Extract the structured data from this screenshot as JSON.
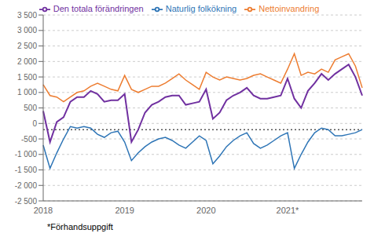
{
  "chart_data": {
    "type": "line",
    "categories": [
      "2018",
      null,
      null,
      null,
      null,
      null,
      null,
      null,
      null,
      null,
      null,
      null,
      "2019",
      null,
      null,
      null,
      null,
      null,
      null,
      null,
      null,
      null,
      null,
      null,
      "2020",
      null,
      null,
      null,
      null,
      null,
      null,
      null,
      null,
      null,
      null,
      null,
      "2021*",
      null,
      null,
      null,
      null,
      null,
      null,
      null,
      null,
      null,
      null,
      null
    ],
    "series": [
      {
        "name": "Naturlig folkökning",
        "color": "#2e75b6",
        "values": [
          -700,
          -1450,
          -950,
          -500,
          -100,
          -150,
          -100,
          -150,
          -350,
          -450,
          -300,
          -250,
          -600,
          -1200,
          -950,
          -750,
          -600,
          -500,
          -450,
          -550,
          -700,
          -800,
          -600,
          -400,
          -550,
          -1300,
          -1050,
          -750,
          -550,
          -400,
          -300,
          -650,
          -800,
          -700,
          -550,
          -400,
          -300,
          -1450,
          -1000,
          -600,
          -300,
          -150,
          -200,
          -400,
          -400,
          -350,
          -300,
          -200
        ]
      },
      {
        "name": "Nettoinvandring",
        "color": "#ed7d31",
        "values": [
          1250,
          900,
          850,
          700,
          850,
          1000,
          1050,
          1200,
          1300,
          1200,
          1100,
          1050,
          1550,
          1100,
          1000,
          1100,
          1200,
          1200,
          1300,
          1450,
          1600,
          1400,
          1250,
          1100,
          1650,
          1500,
          1400,
          1500,
          1450,
          1400,
          1450,
          1550,
          1600,
          1500,
          1400,
          1300,
          1750,
          2250,
          1550,
          1650,
          1600,
          1750,
          1650,
          2050,
          2150,
          2250,
          1850,
          1150
        ]
      },
      {
        "name": "Den totala förändringen",
        "color": "#7030a0",
        "values": [
          400,
          -600,
          50,
          200,
          700,
          850,
          850,
          1050,
          950,
          700,
          750,
          750,
          950,
          -600,
          -200,
          350,
          600,
          700,
          850,
          900,
          900,
          600,
          650,
          700,
          1100,
          150,
          350,
          750,
          900,
          1000,
          1150,
          900,
          800,
          800,
          850,
          900,
          1450,
          800,
          500,
          1050,
          1300,
          1600,
          1400,
          1600,
          1750,
          1900,
          1500,
          900
        ]
      }
    ],
    "ylim": [
      -2500,
      3500
    ],
    "yticks": [
      {
        "value": -2500,
        "label": "-2 500"
      },
      {
        "value": -2000,
        "label": "-2 000"
      },
      {
        "value": -1500,
        "label": "-1 500"
      },
      {
        "value": -1000,
        "label": "-1 000"
      },
      -500,
      0,
      500,
      {
        "value": 1000,
        "label": "1 000"
      },
      {
        "value": 1500,
        "label": "1 500"
      },
      {
        "value": 2000,
        "label": "2 000"
      },
      {
        "value": 2500,
        "label": "2 500"
      },
      {
        "value": 3000,
        "label": "3 000"
      },
      {
        "value": 3500,
        "label": "3 500"
      }
    ],
    "grid": "y",
    "legend": "top",
    "reference_line": -200,
    "footnote": "*Förhandsuppgift"
  }
}
